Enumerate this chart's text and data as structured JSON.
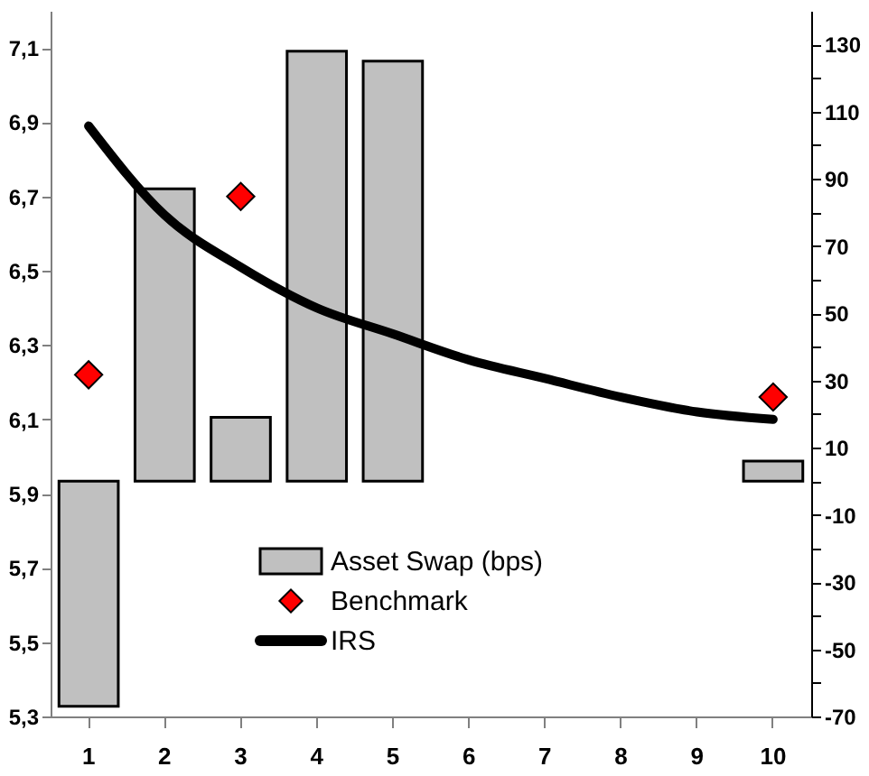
{
  "chart_data": {
    "type": "bar",
    "categories": [
      "1",
      "2",
      "3",
      "4",
      "5",
      "6",
      "7",
      "8",
      "9",
      "10"
    ],
    "series": [
      {
        "name": "Asset Swap (bps)",
        "type": "bar",
        "axis": "y2",
        "color": "#c0c0c0",
        "values": [
          -67,
          87,
          19,
          128,
          125,
          null,
          null,
          null,
          null,
          6
        ]
      },
      {
        "name": "Benchmark",
        "type": "scatter",
        "marker": "diamond",
        "color": "#ff0000",
        "values": [
          6.22,
          null,
          6.7,
          null,
          null,
          null,
          null,
          null,
          null,
          6.16
        ]
      },
      {
        "name": "IRS",
        "type": "line",
        "color": "#000000",
        "values": [
          6.89,
          6.65,
          6.51,
          6.4,
          6.33,
          6.26,
          6.21,
          6.16,
          6.12,
          6.1
        ]
      }
    ],
    "ylim": [
      5.3,
      7.2
    ],
    "yticks": [
      {
        "value": 5.3,
        "label": "5,3"
      },
      {
        "value": 5.5,
        "label": "5,5"
      },
      {
        "value": 5.7,
        "label": "5,7"
      },
      {
        "value": 5.9,
        "label": "5,9"
      },
      {
        "value": 6.1,
        "label": "6,1"
      },
      {
        "value": 6.3,
        "label": "6,3"
      },
      {
        "value": 6.5,
        "label": "6,5"
      },
      {
        "value": 6.7,
        "label": "6,7"
      },
      {
        "value": 6.9,
        "label": "6,9"
      },
      {
        "value": 7.1,
        "label": "7,1"
      }
    ],
    "y2lim": [
      -70,
      140
    ],
    "y2ticks": [
      -70,
      {
        "value": -60,
        "label": null
      },
      -50,
      {
        "value": -40,
        "label": null
      },
      -30,
      {
        "value": -20,
        "label": null
      },
      -10,
      {
        "value": 0,
        "label": null
      },
      10,
      {
        "value": 20,
        "label": null
      },
      30,
      {
        "value": 40,
        "label": null
      },
      50,
      {
        "value": 60,
        "label": null
      },
      70,
      {
        "value": 80,
        "label": null
      },
      90,
      {
        "value": 100,
        "label": null
      },
      110,
      {
        "value": 120,
        "label": null
      },
      130
    ],
    "grid": false,
    "legend": "bottom"
  }
}
